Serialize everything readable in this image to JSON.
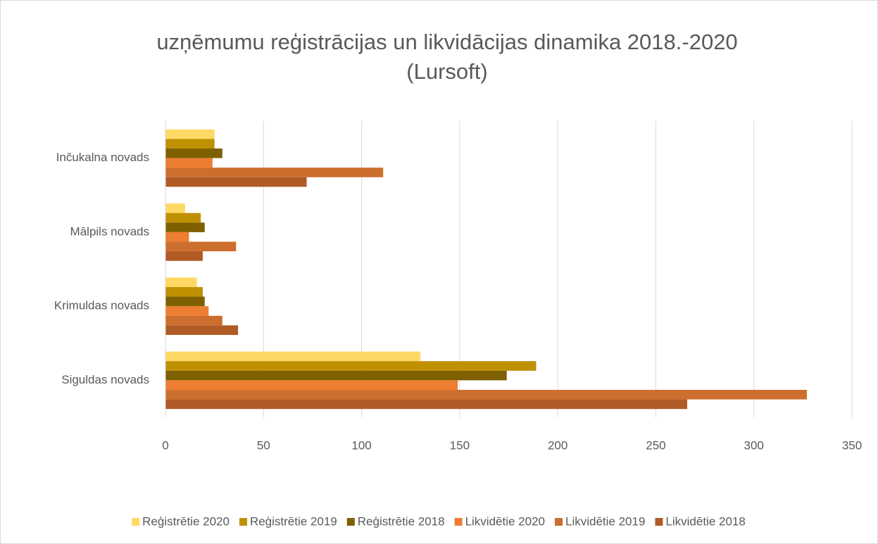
{
  "chart_data": {
    "type": "hbar",
    "title": [
      "uzņēmumu reģistrācijas un likvidācijas dinamika 2018.-2020",
      "(Lursoft)"
    ],
    "categories": [
      "Inčukalna novads",
      "Mālpils novads",
      "Krimuldas novads",
      "Siguldas novads"
    ],
    "series": [
      {
        "name": "Reģistrētie 2020",
        "color": "#ffd966",
        "values": [
          25,
          10,
          16,
          130
        ]
      },
      {
        "name": "Reģistrētie 2019",
        "color": "#bf9000",
        "values": [
          25,
          18,
          19,
          189
        ]
      },
      {
        "name": "Reģistrētie 2018",
        "color": "#7f6000",
        "values": [
          29,
          20,
          20,
          174
        ]
      },
      {
        "name": "Likvidētie 2020",
        "color": "#ed7d31",
        "values": [
          24,
          12,
          22,
          149
        ]
      },
      {
        "name": "Likvidētie 2019",
        "color": "#cc6e2d",
        "values": [
          111,
          36,
          29,
          327
        ]
      },
      {
        "name": "Likvidētie 2018",
        "color": "#b05a26",
        "values": [
          72,
          19,
          37,
          266
        ]
      }
    ],
    "xlim": [
      0,
      350
    ],
    "xticks": [
      0,
      50,
      100,
      150,
      200,
      250,
      300,
      350
    ],
    "grid": true,
    "legend": "bottom"
  }
}
